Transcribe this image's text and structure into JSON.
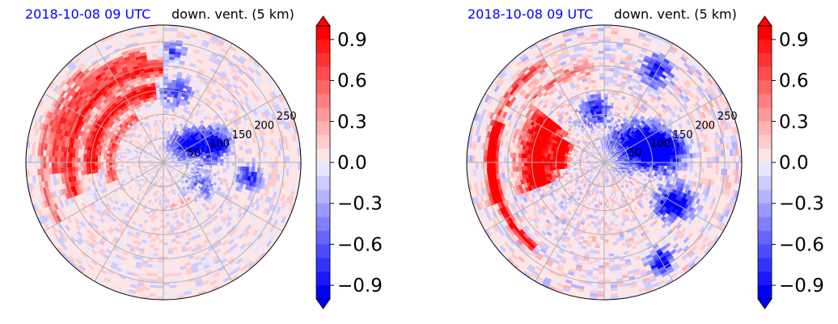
{
  "chart_data": [
    {
      "type": "polar-contour",
      "title_left": "2018-10-08 09 UTC",
      "title_right": "down. vent. (5 km)",
      "radial_ticks": [
        50,
        100,
        150,
        200,
        250
      ],
      "radial_max": 285,
      "angular_gridlines_deg": [
        0,
        30,
        60,
        90,
        120,
        150,
        180,
        210,
        240,
        270,
        300,
        330
      ],
      "colorbar": {
        "ticks": [
          "0.9",
          "0.6",
          "0.3",
          "0.0",
          "−0.3",
          "−0.6",
          "−0.9"
        ],
        "range": [
          -1.0,
          1.0
        ],
        "cmap": "bwr",
        "extend": "both"
      },
      "field": {
        "red_bands": [
          {
            "r": 150,
            "a0": 95,
            "a1": 190,
            "w": 28,
            "v": 0.85
          },
          {
            "r": 195,
            "a0": 90,
            "a1": 200,
            "w": 26,
            "v": 0.75
          },
          {
            "r": 225,
            "a0": 100,
            "a1": 185,
            "w": 22,
            "v": 0.6
          },
          {
            "r": 250,
            "a0": 130,
            "a1": 210,
            "w": 16,
            "v": 0.45
          },
          {
            "r": 110,
            "a0": 120,
            "a1": 200,
            "w": 18,
            "v": 0.5
          },
          {
            "r": 90,
            "a0": 280,
            "a1": 330,
            "w": 10,
            "v": 0.3
          }
        ],
        "blue_blobs": [
          {
            "r": 60,
            "a": 40,
            "w": 30,
            "v": -0.7
          },
          {
            "r": 110,
            "a": 20,
            "w": 35,
            "v": -0.8
          },
          {
            "r": 180,
            "a": 350,
            "w": 25,
            "v": -0.6
          },
          {
            "r": 150,
            "a": 80,
            "w": 30,
            "v": -0.5
          },
          {
            "r": 230,
            "a": 85,
            "w": 20,
            "v": -0.5
          },
          {
            "r": 90,
            "a": 330,
            "w": 30,
            "v": -0.4
          }
        ],
        "noise_amp": 0.22
      }
    },
    {
      "type": "polar-contour",
      "title_left": "2018-10-08 09 UTC",
      "title_right": "down. vent. (5 km)",
      "radial_ticks": [
        50,
        100,
        150,
        200,
        250
      ],
      "radial_max": 285,
      "angular_gridlines_deg": [
        0,
        30,
        60,
        90,
        120,
        150,
        180,
        210,
        240,
        270,
        300,
        330
      ],
      "colorbar": {
        "ticks": [
          "0.9",
          "0.6",
          "0.3",
          "0.0",
          "−0.3",
          "−0.6",
          "−0.9"
        ],
        "range": [
          -1.0,
          1.0
        ],
        "cmap": "bwr",
        "extend": "both"
      },
      "field": {
        "red_bands": [
          {
            "r": 140,
            "a0": 140,
            "a1": 200,
            "w": 60,
            "v": 1.0
          },
          {
            "r": 90,
            "a0": 150,
            "a1": 190,
            "w": 25,
            "v": 0.9
          },
          {
            "r": 230,
            "a0": 160,
            "a1": 230,
            "w": 14,
            "v": 0.9
          },
          {
            "r": 240,
            "a0": 120,
            "a1": 200,
            "w": 20,
            "v": 0.5
          },
          {
            "r": 200,
            "a0": 95,
            "a1": 140,
            "w": 20,
            "v": 0.4
          }
        ],
        "blue_blobs": [
          {
            "r": 80,
            "a": 30,
            "w": 45,
            "v": -0.9
          },
          {
            "r": 130,
            "a": 10,
            "w": 40,
            "v": -0.9
          },
          {
            "r": 170,
            "a": 330,
            "w": 35,
            "v": -0.85
          },
          {
            "r": 220,
            "a": 60,
            "w": 30,
            "v": -0.7
          },
          {
            "r": 240,
            "a": 300,
            "w": 25,
            "v": -0.8
          },
          {
            "r": 110,
            "a": 100,
            "w": 30,
            "v": -0.6
          }
        ],
        "noise_amp": 0.28
      }
    }
  ]
}
